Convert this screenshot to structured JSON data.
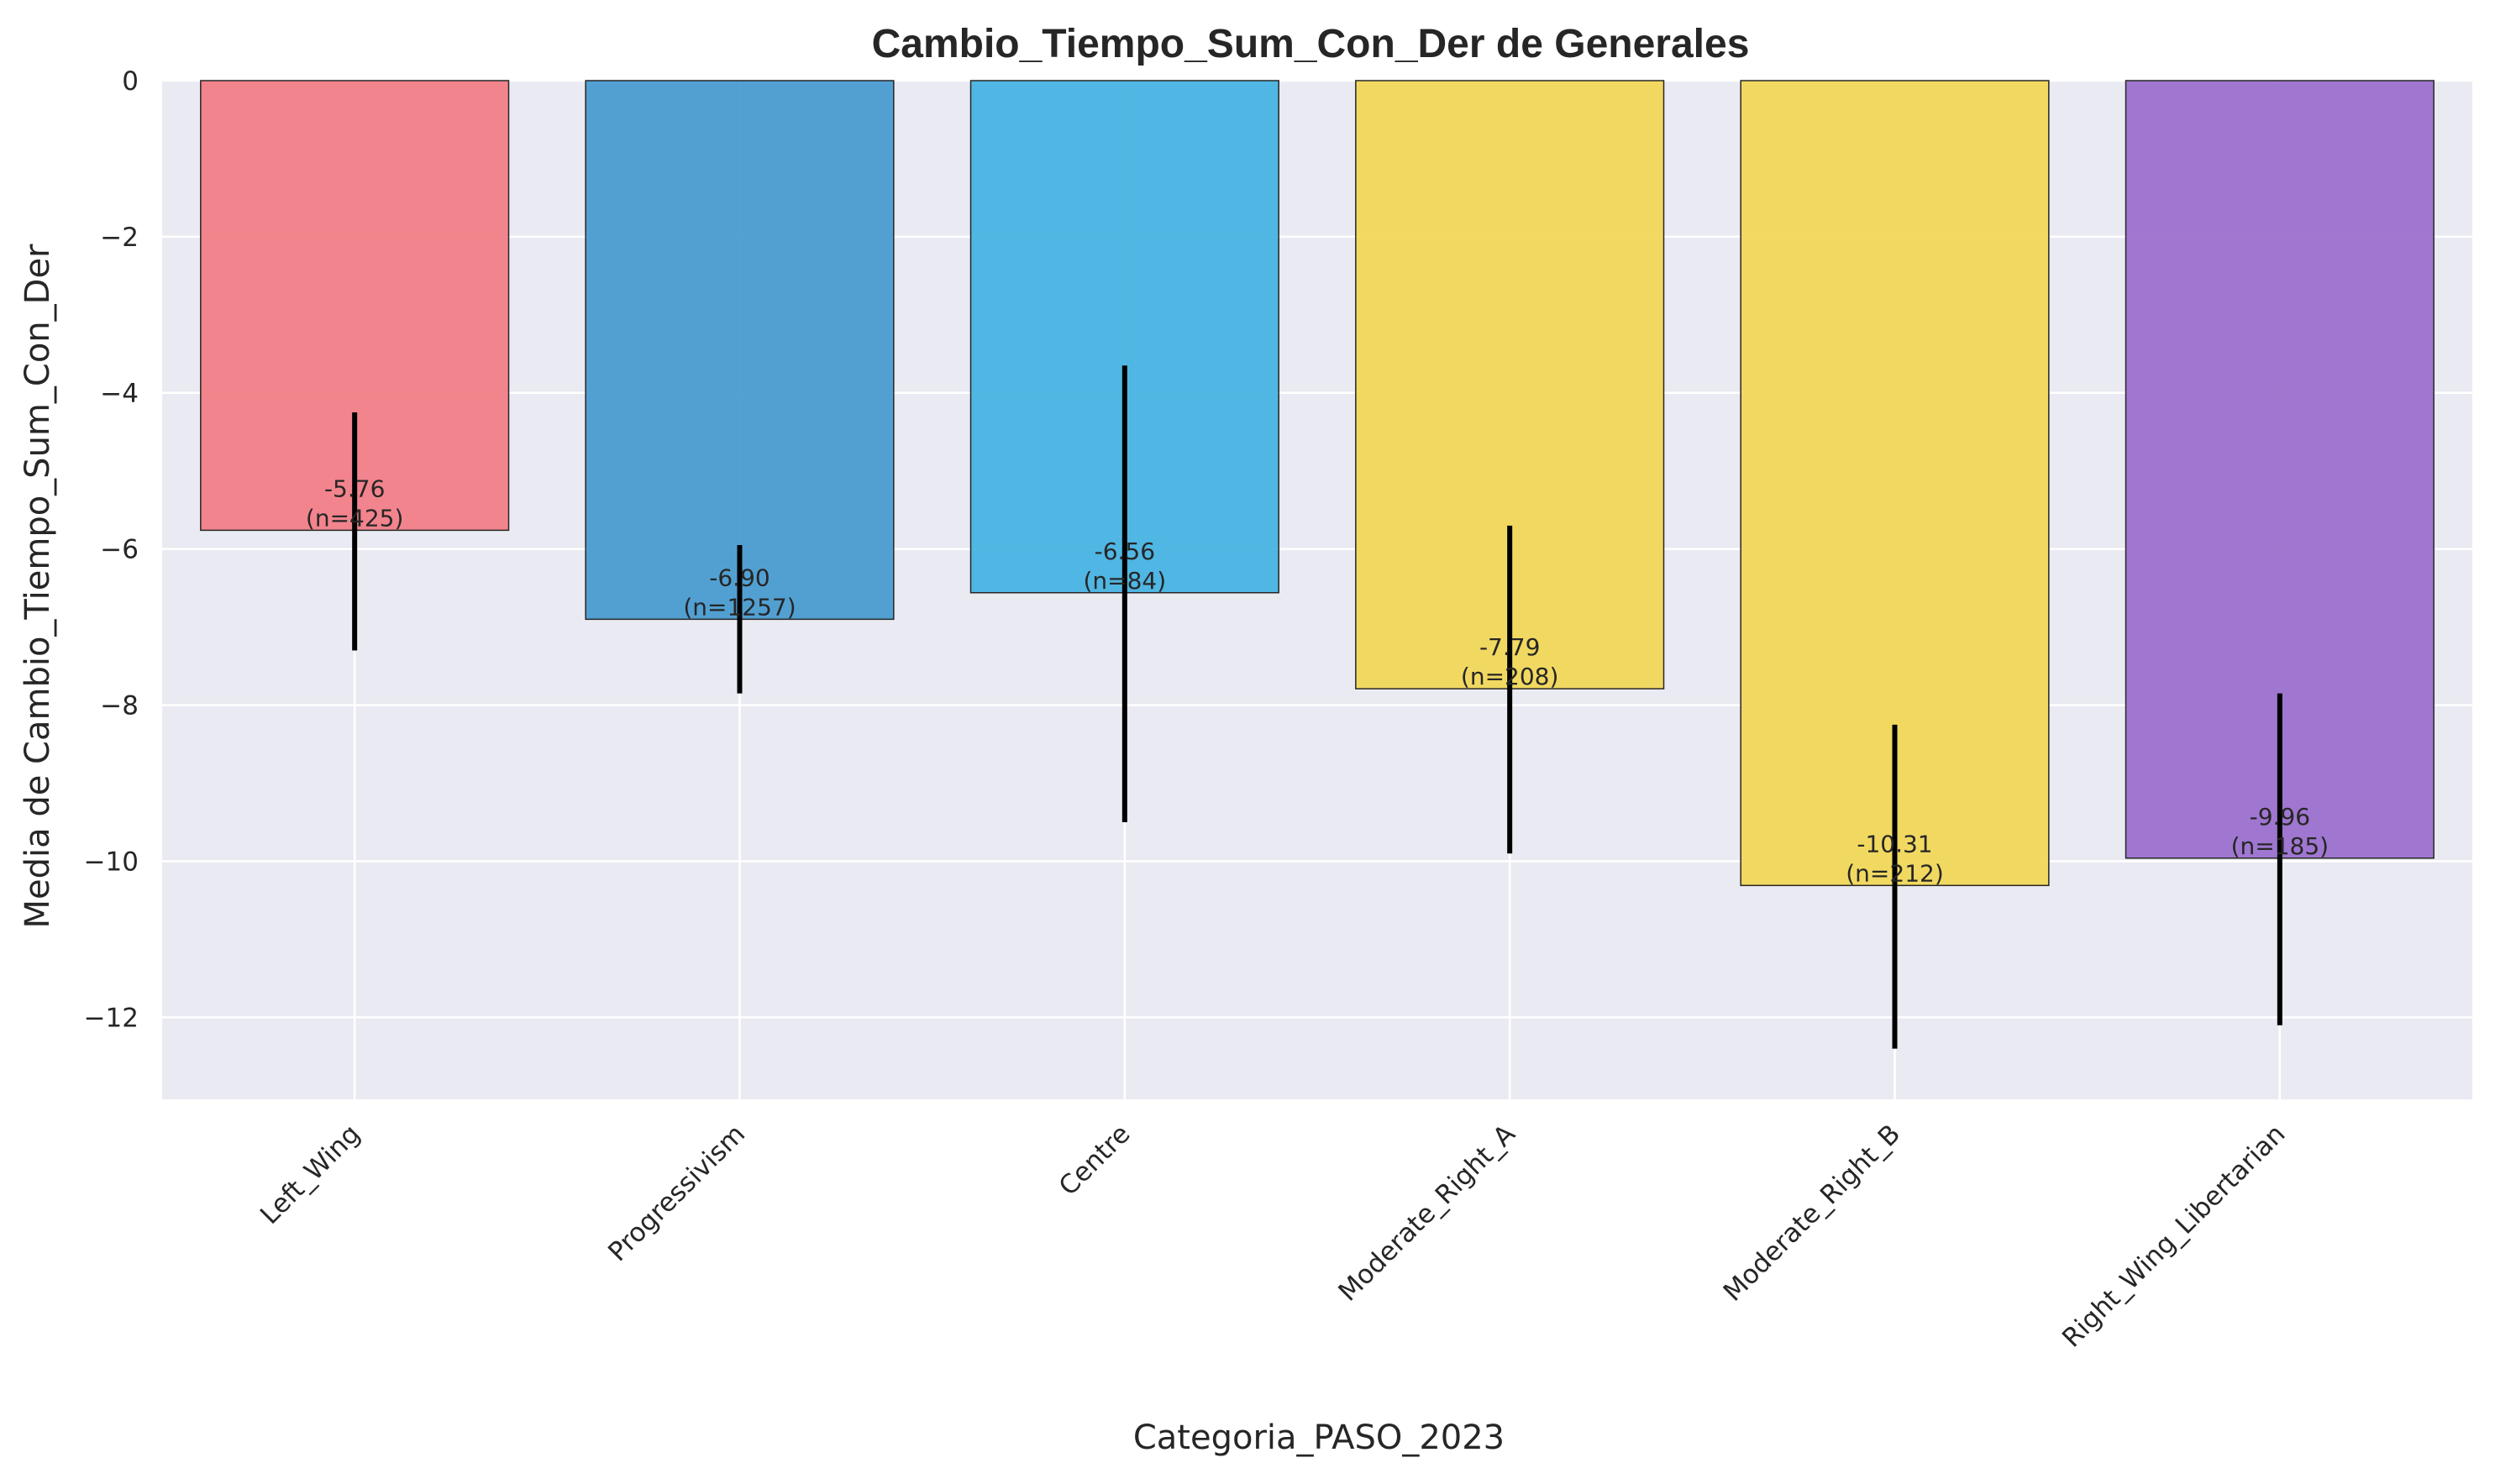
{
  "chart_data": {
    "type": "bar",
    "title": "Cambio_Tiempo_Sum_Con_Der de Generales",
    "xlabel": "Categoria_PASO_2023",
    "ylabel": "Media de Cambio_Tiempo_Sum_Con_Der",
    "categories": [
      "Left_Wing",
      "Progressivism",
      "Centre",
      "Moderate_Right_A",
      "Moderate_Right_B",
      "Right_Wing_Libertarian"
    ],
    "values": [
      -5.76,
      -6.9,
      -6.56,
      -7.79,
      -10.31,
      -9.96
    ],
    "n": [
      425,
      1257,
      84,
      208,
      212,
      185
    ],
    "value_labels": [
      "-5.76",
      "-6.90",
      "-6.56",
      "-7.79",
      "-10.31",
      "-9.96"
    ],
    "n_labels": [
      "(n=425)",
      "(n=1257)",
      "(n=84)",
      "(n=208)",
      "(n=212)",
      "(n=185)"
    ],
    "error_low": [
      -7.3,
      -7.85,
      -9.5,
      -9.9,
      -12.4,
      -12.1
    ],
    "error_high": [
      -4.25,
      -5.95,
      -3.65,
      -5.7,
      -8.25,
      -7.85
    ],
    "colors": [
      "#f27e87",
      "#4a9cd0",
      "#48b3e2",
      "#f1d859",
      "#f1d859",
      "#9b71cd"
    ],
    "ylim": [
      -13.05,
      0
    ],
    "yticks": [
      0,
      -2,
      -4,
      -6,
      -8,
      -10,
      -12
    ],
    "ytick_labels": [
      "0",
      "−2",
      "−4",
      "−6",
      "−8",
      "−10",
      "−12"
    ],
    "grid": true,
    "background": "#eaeaf2"
  }
}
